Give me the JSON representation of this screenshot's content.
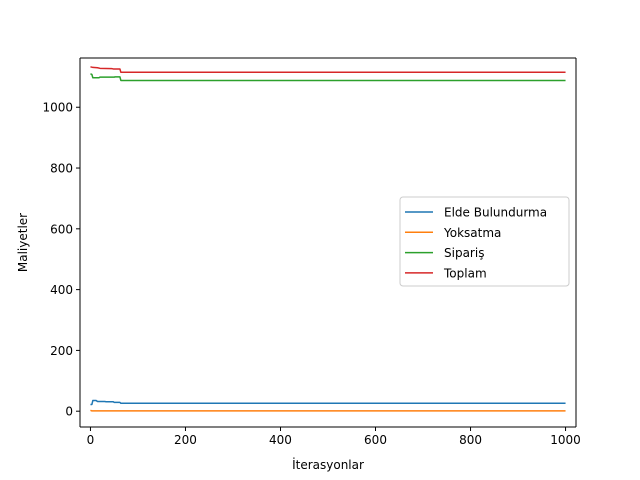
{
  "chart_data": {
    "type": "line",
    "title": "",
    "xlabel": "İterasyonlar",
    "ylabel": "Maliyetler",
    "xlim": [
      -22,
      1022
    ],
    "ylim": [
      -52,
      1162
    ],
    "xticks": [
      0,
      200,
      400,
      600,
      800,
      1000
    ],
    "yticks": [
      0,
      200,
      400,
      600,
      800,
      1000
    ],
    "grid": false,
    "legend_position": "center-right",
    "series": [
      {
        "name": "Elde Bulundurma",
        "color": "#1f77b4",
        "points": [
          [
            0,
            22
          ],
          [
            3,
            22
          ],
          [
            5,
            35
          ],
          [
            12,
            35
          ],
          [
            15,
            32
          ],
          [
            30,
            32
          ],
          [
            33,
            31
          ],
          [
            48,
            31
          ],
          [
            50,
            29
          ],
          [
            62,
            29
          ],
          [
            64,
            26
          ],
          [
            1000,
            26
          ]
        ]
      },
      {
        "name": "Yoksatma",
        "color": "#ff7f0e",
        "points": [
          [
            0,
            3
          ],
          [
            3,
            1
          ],
          [
            1000,
            1
          ]
        ]
      },
      {
        "name": "Sipariş",
        "color": "#2ca02c",
        "points": [
          [
            0,
            1110
          ],
          [
            3,
            1108
          ],
          [
            5,
            1097
          ],
          [
            18,
            1097
          ],
          [
            20,
            1099
          ],
          [
            50,
            1099
          ],
          [
            52,
            1100
          ],
          [
            62,
            1100
          ],
          [
            64,
            1088
          ],
          [
            1000,
            1088
          ]
        ]
      },
      {
        "name": "Toplam",
        "color": "#d62728",
        "points": [
          [
            0,
            1133
          ],
          [
            5,
            1131
          ],
          [
            15,
            1130
          ],
          [
            20,
            1128
          ],
          [
            45,
            1127
          ],
          [
            48,
            1126
          ],
          [
            62,
            1126
          ],
          [
            64,
            1115
          ],
          [
            1000,
            1115
          ]
        ]
      }
    ]
  }
}
